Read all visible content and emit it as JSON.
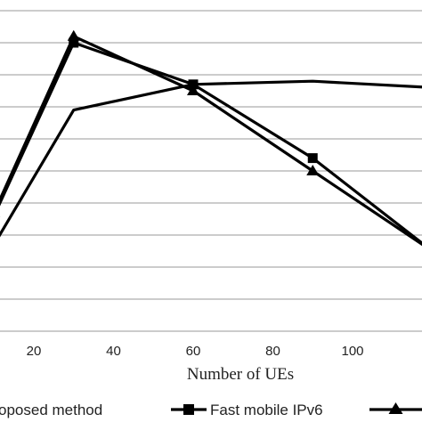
{
  "chart_data": {
    "type": "line",
    "xlabel": "Number of UEs",
    "x_ticks": [
      20,
      40,
      60,
      80,
      100
    ],
    "x": [
      10,
      30,
      60,
      90,
      120
    ],
    "xlim": [
      10,
      120
    ],
    "ylim": [
      0,
      10
    ],
    "grid": true,
    "legend_position": "bottom",
    "series": [
      {
        "name": "Proposed method",
        "marker": "none",
        "values": [
          2.7,
          6.9,
          7.7,
          7.8,
          7.6
        ]
      },
      {
        "name": "Fast mobile IPv6",
        "marker": "square",
        "values": [
          3.6,
          9.0,
          7.7,
          5.4,
          2.5
        ]
      },
      {
        "name": "",
        "marker": "triangle",
        "values": [
          3.7,
          9.2,
          7.5,
          5.0,
          2.5
        ]
      }
    ]
  },
  "legend": {
    "labels": [
      "oposed method",
      "Fast mobile IPv6",
      ""
    ]
  },
  "colors": {
    "line": "#000000",
    "grid": "#9a9a9a",
    "background": "#ffffff"
  }
}
